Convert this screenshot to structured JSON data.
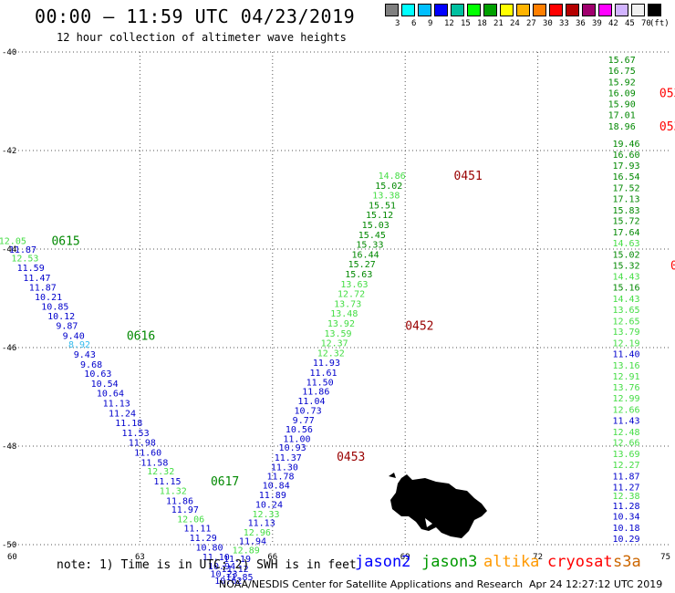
{
  "header": {
    "title": "00:00 – 11:59 UTC 04/23/2019",
    "subtitle": "12 hour collection of altimeter wave heights"
  },
  "legend": {
    "colors": [
      "#808080",
      "#00ffff",
      "#00bfff",
      "#0000ff",
      "#00c0a0",
      "#00ff00",
      "#00a000",
      "#ffff00",
      "#ffb400",
      "#ff7f00",
      "#ff0000",
      "#b40000",
      "#a0006e",
      "#ff00ff",
      "#d2b4ff",
      "#f0f0f0",
      "#000000"
    ],
    "ticks": [
      "3",
      "6",
      "9",
      "12",
      "15",
      "18",
      "21",
      "24",
      "27",
      "30",
      "33",
      "36",
      "39",
      "42",
      "45",
      "70"
    ],
    "unit": "(ft)"
  },
  "axes": {
    "x_ticks": [
      60,
      63,
      66,
      69,
      72,
      75
    ],
    "x_labels": [
      "60",
      "63",
      "66",
      "69",
      "72",
      "75"
    ],
    "y_ticks": [
      -40,
      -42,
      -44,
      -46,
      -48,
      -50
    ],
    "y_labels": [
      "-40",
      "-42",
      "-44",
      "-46",
      "-48",
      "-50"
    ],
    "x_range": [
      60,
      75
    ],
    "y_range": [
      -50,
      -40
    ],
    "grid": true
  },
  "series_colors": {
    "j2": "#0000cc",
    "j3": "#008800",
    "lg": "#44dd44",
    "cy": "#33bbee",
    "red": "#ff0000",
    "dark": "#990000"
  },
  "passes": [
    {
      "name": "pass-west",
      "points": [
        {
          "lon": 60.12,
          "lat": -43.82,
          "v": "12.05",
          "c": "lg"
        },
        {
          "lon": 60.35,
          "lat": -44.0,
          "v": "11.87",
          "c": "j2"
        },
        {
          "lon": 60.4,
          "lat": -44.18,
          "v": "12.53",
          "c": "lg"
        },
        {
          "lon": 60.53,
          "lat": -44.37,
          "v": "11.59",
          "c": "j2"
        },
        {
          "lon": 60.67,
          "lat": -44.57,
          "v": "11.47",
          "c": "j2"
        },
        {
          "lon": 60.8,
          "lat": -44.77,
          "v": "11.87",
          "c": "j2"
        },
        {
          "lon": 60.93,
          "lat": -44.96,
          "v": "10.21",
          "c": "j2"
        },
        {
          "lon": 61.08,
          "lat": -45.16,
          "v": "10.85",
          "c": "j2"
        },
        {
          "lon": 61.22,
          "lat": -45.35,
          "v": "10.12",
          "c": "j2"
        },
        {
          "lon": 61.35,
          "lat": -45.55,
          "v": "9.87",
          "c": "j2"
        },
        {
          "lon": 61.5,
          "lat": -45.75,
          "v": "9.40",
          "c": "j2"
        },
        {
          "lon": 61.63,
          "lat": -45.93,
          "v": "8.92",
          "c": "cy"
        },
        {
          "lon": 61.75,
          "lat": -46.13,
          "v": "9.43",
          "c": "j2"
        },
        {
          "lon": 61.9,
          "lat": -46.33,
          "v": "9.68",
          "c": "j2"
        },
        {
          "lon": 62.05,
          "lat": -46.52,
          "v": "10.63",
          "c": "j2"
        },
        {
          "lon": 62.2,
          "lat": -46.72,
          "v": "10.54",
          "c": "j2"
        },
        {
          "lon": 62.33,
          "lat": -46.92,
          "v": "10.64",
          "c": "j2"
        },
        {
          "lon": 62.47,
          "lat": -47.12,
          "v": "11.13",
          "c": "j2"
        },
        {
          "lon": 62.6,
          "lat": -47.32,
          "v": "11.24",
          "c": "j2"
        },
        {
          "lon": 62.75,
          "lat": -47.52,
          "v": "11.18",
          "c": "j2"
        },
        {
          "lon": 62.9,
          "lat": -47.72,
          "v": "11.53",
          "c": "j2"
        },
        {
          "lon": 63.05,
          "lat": -47.92,
          "v": "11.98",
          "c": "j2"
        },
        {
          "lon": 63.18,
          "lat": -48.12,
          "v": "11.60",
          "c": "j2"
        },
        {
          "lon": 63.33,
          "lat": -48.32,
          "v": "11.58",
          "c": "j2"
        },
        {
          "lon": 63.47,
          "lat": -48.5,
          "v": "12.32",
          "c": "lg"
        },
        {
          "lon": 63.62,
          "lat": -48.7,
          "v": "11.15",
          "c": "j2"
        },
        {
          "lon": 63.75,
          "lat": -48.9,
          "v": "11.32",
          "c": "lg"
        },
        {
          "lon": 63.9,
          "lat": -49.1,
          "v": "11.86",
          "c": "j2"
        },
        {
          "lon": 64.02,
          "lat": -49.28,
          "v": "11.97",
          "c": "j2"
        },
        {
          "lon": 64.15,
          "lat": -49.47,
          "v": "12.06",
          "c": "lg"
        },
        {
          "lon": 64.3,
          "lat": -49.66,
          "v": "11.11",
          "c": "j2"
        },
        {
          "lon": 64.43,
          "lat": -49.85,
          "v": "11.29",
          "c": "j2"
        },
        {
          "lon": 64.57,
          "lat": -50.05,
          "v": "10.80",
          "c": "j2"
        },
        {
          "lon": 64.72,
          "lat": -50.24,
          "v": "11.10",
          "c": "j2"
        },
        {
          "lon": 64.85,
          "lat": -50.43,
          "v": "10.94",
          "c": "j2"
        },
        {
          "lon": 64.9,
          "lat": -50.58,
          "v": "10.23",
          "c": "j2"
        },
        {
          "lon": 65.0,
          "lat": -50.72,
          "v": "10.62",
          "c": "j2"
        }
      ]
    },
    {
      "name": "pass-central",
      "points": [
        {
          "lon": 65.25,
          "lat": -50.65,
          "v": "11.85",
          "c": "j2"
        },
        {
          "lon": 65.15,
          "lat": -50.48,
          "v": "11.12",
          "c": "j2"
        },
        {
          "lon": 65.2,
          "lat": -50.28,
          "v": "11.19",
          "c": "j2"
        },
        {
          "lon": 65.4,
          "lat": -50.1,
          "v": "12.89",
          "c": "lg"
        },
        {
          "lon": 65.55,
          "lat": -49.92,
          "v": "11.94",
          "c": "j2"
        },
        {
          "lon": 65.65,
          "lat": -49.74,
          "v": "12.96",
          "c": "lg"
        },
        {
          "lon": 65.75,
          "lat": -49.55,
          "v": "11.13",
          "c": "j2"
        },
        {
          "lon": 65.85,
          "lat": -49.37,
          "v": "12.33",
          "c": "lg"
        },
        {
          "lon": 65.92,
          "lat": -49.18,
          "v": "10.24",
          "c": "j2"
        },
        {
          "lon": 66.0,
          "lat": -48.98,
          "v": "11.89",
          "c": "j2"
        },
        {
          "lon": 66.08,
          "lat": -48.79,
          "v": "10.84",
          "c": "j2"
        },
        {
          "lon": 66.18,
          "lat": -48.6,
          "v": "11.78",
          "c": "j2"
        },
        {
          "lon": 66.27,
          "lat": -48.42,
          "v": "11.30",
          "c": "j2"
        },
        {
          "lon": 66.35,
          "lat": -48.22,
          "v": "11.37",
          "c": "j2"
        },
        {
          "lon": 66.45,
          "lat": -48.02,
          "v": "10.93",
          "c": "j2"
        },
        {
          "lon": 66.55,
          "lat": -47.84,
          "v": "11.00",
          "c": "j2"
        },
        {
          "lon": 66.6,
          "lat": -47.65,
          "v": "10.56",
          "c": "j2"
        },
        {
          "lon": 66.7,
          "lat": -47.46,
          "v": "9.77",
          "c": "j2"
        },
        {
          "lon": 66.8,
          "lat": -47.27,
          "v": "10.73",
          "c": "j2"
        },
        {
          "lon": 66.88,
          "lat": -47.07,
          "v": "11.04",
          "c": "j2"
        },
        {
          "lon": 66.98,
          "lat": -46.88,
          "v": "11.86",
          "c": "j2"
        },
        {
          "lon": 67.07,
          "lat": -46.69,
          "v": "11.50",
          "c": "j2"
        },
        {
          "lon": 67.15,
          "lat": -46.5,
          "v": "11.61",
          "c": "j2"
        },
        {
          "lon": 67.22,
          "lat": -46.3,
          "v": "11.93",
          "c": "j2"
        },
        {
          "lon": 67.32,
          "lat": -46.1,
          "v": "12.32",
          "c": "lg"
        },
        {
          "lon": 67.4,
          "lat": -45.9,
          "v": "12.37",
          "c": "lg"
        },
        {
          "lon": 67.48,
          "lat": -45.7,
          "v": "13.59",
          "c": "lg"
        },
        {
          "lon": 67.55,
          "lat": -45.5,
          "v": "13.92",
          "c": "lg"
        },
        {
          "lon": 67.62,
          "lat": -45.3,
          "v": "13.48",
          "c": "lg"
        },
        {
          "lon": 67.7,
          "lat": -45.1,
          "v": "13.73",
          "c": "lg"
        },
        {
          "lon": 67.78,
          "lat": -44.9,
          "v": "12.72",
          "c": "lg"
        },
        {
          "lon": 67.85,
          "lat": -44.7,
          "v": "13.63",
          "c": "lg"
        },
        {
          "lon": 67.95,
          "lat": -44.5,
          "v": "15.63",
          "c": "j3"
        },
        {
          "lon": 68.02,
          "lat": -44.3,
          "v": "15.27",
          "c": "j3"
        },
        {
          "lon": 68.1,
          "lat": -44.1,
          "v": "16.44",
          "c": "j3"
        },
        {
          "lon": 68.2,
          "lat": -43.9,
          "v": "15.33",
          "c": "j3"
        },
        {
          "lon": 68.25,
          "lat": -43.7,
          "v": "15.45",
          "c": "j3"
        },
        {
          "lon": 68.33,
          "lat": -43.5,
          "v": "15.03",
          "c": "j3"
        },
        {
          "lon": 68.42,
          "lat": -43.3,
          "v": "15.12",
          "c": "j3"
        },
        {
          "lon": 68.48,
          "lat": -43.1,
          "v": "15.51",
          "c": "j3"
        },
        {
          "lon": 68.57,
          "lat": -42.9,
          "v": "13.38",
          "c": "lg"
        },
        {
          "lon": 68.63,
          "lat": -42.7,
          "v": "15.02",
          "c": "j3"
        },
        {
          "lon": 68.7,
          "lat": -42.5,
          "v": "14.86",
          "c": "lg"
        }
      ]
    },
    {
      "name": "pass-east",
      "points": [
        {
          "lon": 73.9,
          "lat": -40.15,
          "v": "15.67",
          "c": "j3"
        },
        {
          "lon": 73.9,
          "lat": -40.37,
          "v": "16.75",
          "c": "j3"
        },
        {
          "lon": 73.9,
          "lat": -40.6,
          "v": "15.92",
          "c": "j3"
        },
        {
          "lon": 73.9,
          "lat": -40.82,
          "v": "16.09",
          "c": "j3"
        },
        {
          "lon": 73.9,
          "lat": -41.05,
          "v": "15.90",
          "c": "j3"
        },
        {
          "lon": 73.9,
          "lat": -41.27,
          "v": "17.01",
          "c": "j3"
        },
        {
          "lon": 73.9,
          "lat": -41.5,
          "v": "18.96",
          "c": "j3"
        },
        {
          "lon": 74.0,
          "lat": -41.85,
          "v": "19.46",
          "c": "j3"
        },
        {
          "lon": 74.0,
          "lat": -42.07,
          "v": "16.60",
          "c": "j3"
        },
        {
          "lon": 74.0,
          "lat": -42.3,
          "v": "17.93",
          "c": "j3"
        },
        {
          "lon": 74.0,
          "lat": -42.52,
          "v": "16.54",
          "c": "j3"
        },
        {
          "lon": 74.0,
          "lat": -42.75,
          "v": "17.52",
          "c": "j3"
        },
        {
          "lon": 74.0,
          "lat": -42.97,
          "v": "17.13",
          "c": "j3"
        },
        {
          "lon": 74.0,
          "lat": -43.2,
          "v": "15.83",
          "c": "j3"
        },
        {
          "lon": 74.0,
          "lat": -43.42,
          "v": "15.72",
          "c": "j3"
        },
        {
          "lon": 74.0,
          "lat": -43.65,
          "v": "17.64",
          "c": "j3"
        },
        {
          "lon": 74.0,
          "lat": -43.87,
          "v": "14.63",
          "c": "lg"
        },
        {
          "lon": 74.0,
          "lat": -44.1,
          "v": "15.02",
          "c": "j3"
        },
        {
          "lon": 74.0,
          "lat": -44.32,
          "v": "15.32",
          "c": "j3"
        },
        {
          "lon": 74.0,
          "lat": -44.55,
          "v": "14.43",
          "c": "lg"
        },
        {
          "lon": 74.0,
          "lat": -44.77,
          "v": "15.16",
          "c": "j3"
        },
        {
          "lon": 74.0,
          "lat": -45.0,
          "v": "14.43",
          "c": "lg"
        },
        {
          "lon": 74.0,
          "lat": -45.22,
          "v": "13.65",
          "c": "lg"
        },
        {
          "lon": 74.0,
          "lat": -45.45,
          "v": "12.65",
          "c": "lg"
        },
        {
          "lon": 74.0,
          "lat": -45.67,
          "v": "13.79",
          "c": "lg"
        },
        {
          "lon": 74.0,
          "lat": -45.9,
          "v": "12.19",
          "c": "lg"
        },
        {
          "lon": 74.0,
          "lat": -46.12,
          "v": "11.40",
          "c": "j2"
        },
        {
          "lon": 74.0,
          "lat": -46.35,
          "v": "13.16",
          "c": "lg"
        },
        {
          "lon": 74.0,
          "lat": -46.57,
          "v": "12.91",
          "c": "lg"
        },
        {
          "lon": 74.0,
          "lat": -46.8,
          "v": "13.76",
          "c": "lg"
        },
        {
          "lon": 74.0,
          "lat": -47.02,
          "v": "12.99",
          "c": "lg"
        },
        {
          "lon": 74.0,
          "lat": -47.25,
          "v": "12.66",
          "c": "lg"
        },
        {
          "lon": 74.0,
          "lat": -47.47,
          "v": "11.43",
          "c": "j2"
        },
        {
          "lon": 74.0,
          "lat": -47.7,
          "v": "12.48",
          "c": "lg"
        },
        {
          "lon": 74.0,
          "lat": -47.92,
          "v": "12.66",
          "c": "lg"
        },
        {
          "lon": 74.0,
          "lat": -48.15,
          "v": "13.69",
          "c": "lg"
        },
        {
          "lon": 74.0,
          "lat": -48.37,
          "v": "12.27",
          "c": "lg"
        },
        {
          "lon": 74.0,
          "lat": -48.6,
          "v": "11.87",
          "c": "j2"
        },
        {
          "lon": 74.0,
          "lat": -48.82,
          "v": "11.27",
          "c": "j2"
        },
        {
          "lon": 74.0,
          "lat": -49.0,
          "v": "12.38",
          "c": "lg"
        },
        {
          "lon": 74.0,
          "lat": -49.2,
          "v": "11.28",
          "c": "j2"
        },
        {
          "lon": 74.0,
          "lat": -49.42,
          "v": "10.34",
          "c": "j2"
        },
        {
          "lon": 74.0,
          "lat": -49.65,
          "v": "10.18",
          "c": "j2"
        },
        {
          "lon": 74.0,
          "lat": -49.87,
          "v": "10.29",
          "c": "j2"
        }
      ]
    }
  ],
  "time_labels": [
    {
      "text": "0615",
      "lon": 61.0,
      "lat": -43.82,
      "c": "j3"
    },
    {
      "text": "0616",
      "lon": 62.7,
      "lat": -45.75,
      "c": "j3"
    },
    {
      "text": "0617",
      "lon": 64.6,
      "lat": -48.7,
      "c": "j3"
    },
    {
      "text": "0451",
      "lon": 70.1,
      "lat": -42.5,
      "c": "dark"
    },
    {
      "text": "0452",
      "lon": 69.0,
      "lat": -45.55,
      "c": "dark"
    },
    {
      "text": "0453",
      "lon": 67.45,
      "lat": -48.2,
      "c": "dark"
    },
    {
      "text": "0534",
      "lon": 74.75,
      "lat": -40.82,
      "c": "red"
    },
    {
      "text": "0533",
      "lon": 74.75,
      "lat": -41.5,
      "c": "red"
    },
    {
      "text": "0533",
      "lon": 75.0,
      "lat": -44.32,
      "c": "red"
    }
  ],
  "partial_labels": [
    {
      "text": "0",
      "lon": 75.45,
      "lat": -47.95,
      "c": "red"
    },
    {
      "text": "0",
      "lon": 75.45,
      "lat": -48.82,
      "c": "red"
    }
  ],
  "footer": {
    "note": "note:  1) Time is in UTC;  2) SWH is in feet",
    "satellites": [
      {
        "label": "jason2",
        "color": "#0000ff"
      },
      {
        "label": "jason3",
        "color": "#009900"
      },
      {
        "label": "altika",
        "color": "#ff9900"
      },
      {
        "label": "cryosat",
        "color": "#ff0000"
      },
      {
        "label": "s3a",
        "color": "#cc6600"
      }
    ],
    "credit": "NOAA/NESDIS Center for Satellite Applications and Research",
    "timestamp": "Apr 24 12:27:12 UTC 2019"
  }
}
